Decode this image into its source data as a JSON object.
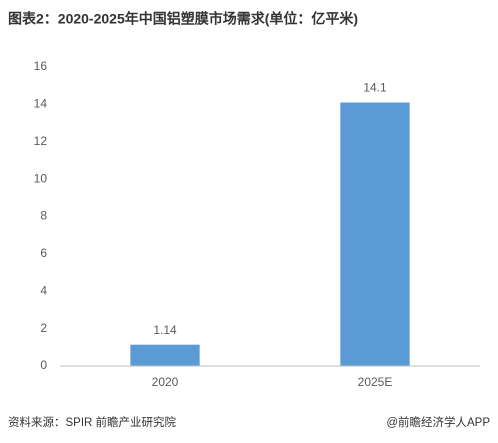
{
  "chart_data": {
    "type": "bar",
    "title": "图表2：2020-2025年中国铝塑膜市场需求(单位：亿平米)",
    "categories": [
      "2020",
      "2025E"
    ],
    "values": [
      1.14,
      14.1
    ],
    "color": "#5b9bd5",
    "ylim": [
      0,
      16
    ],
    "yticks": [
      0,
      2,
      4,
      6,
      8,
      10,
      12,
      14,
      16
    ],
    "grid": false,
    "source": "资料来源：SPIR 前瞻产业研究院",
    "credit": "@前瞻经济学人APP"
  }
}
